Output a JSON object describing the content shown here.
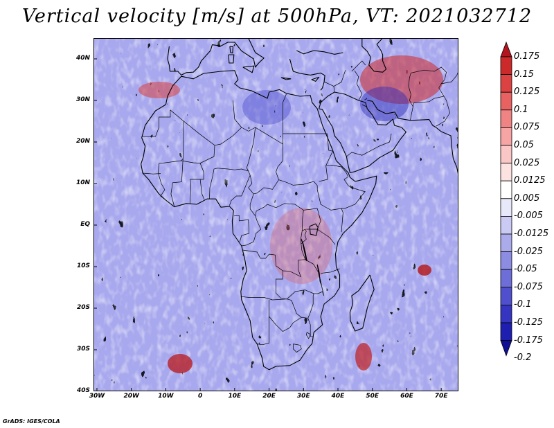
{
  "title": "Vertical velocity [m/s] at 500hPa, VT: 2021032712",
  "lat_ticks": [
    {
      "label": "40N",
      "lat": 40
    },
    {
      "label": "30N",
      "lat": 30
    },
    {
      "label": "20N",
      "lat": 20
    },
    {
      "label": "10N",
      "lat": 10
    },
    {
      "label": "EQ",
      "lat": 0
    },
    {
      "label": "10S",
      "lat": -10
    },
    {
      "label": "20S",
      "lat": -20
    },
    {
      "label": "30S",
      "lat": -30
    },
    {
      "label": "40S",
      "lat": -40
    }
  ],
  "lon_ticks": [
    {
      "label": "30W",
      "lon": -30
    },
    {
      "label": "20W",
      "lon": -20
    },
    {
      "label": "10W",
      "lon": -10
    },
    {
      "label": "0",
      "lon": 0
    },
    {
      "label": "10E",
      "lon": 10
    },
    {
      "label": "20E",
      "lon": 20
    },
    {
      "label": "30E",
      "lon": 30
    },
    {
      "label": "40E",
      "lon": 40
    },
    {
      "label": "50E",
      "lon": 50
    },
    {
      "label": "60E",
      "lon": 60
    },
    {
      "label": "70E",
      "lon": 70
    }
  ],
  "map_extent": {
    "lon_min": -31,
    "lon_max": 75,
    "lat_min": -40,
    "lat_max": 45
  },
  "colorbar": {
    "levels": [
      "0.175",
      "0.15",
      "0.125",
      "0.1",
      "0.075",
      "0.05",
      "0.025",
      "0.0125",
      "0.005",
      "-0.005",
      "-0.0125",
      "-0.025",
      "-0.05",
      "-0.075",
      "-0.1",
      "-0.125",
      "-0.175",
      "-0.2"
    ],
    "colors": [
      "#b4141e",
      "#cc2a2a",
      "#dc4242",
      "#e86262",
      "#f08484",
      "#f6a4a4",
      "#fac6c6",
      "#fde2e2",
      "#ffffff",
      "#e8e8fb",
      "#cacaf4",
      "#ababec",
      "#8c8ce3",
      "#6e6ed9",
      "#5050cf",
      "#3535c2",
      "#1e1eb0",
      "#101096"
    ]
  },
  "credit": "GrADS: IGES/COLA"
}
